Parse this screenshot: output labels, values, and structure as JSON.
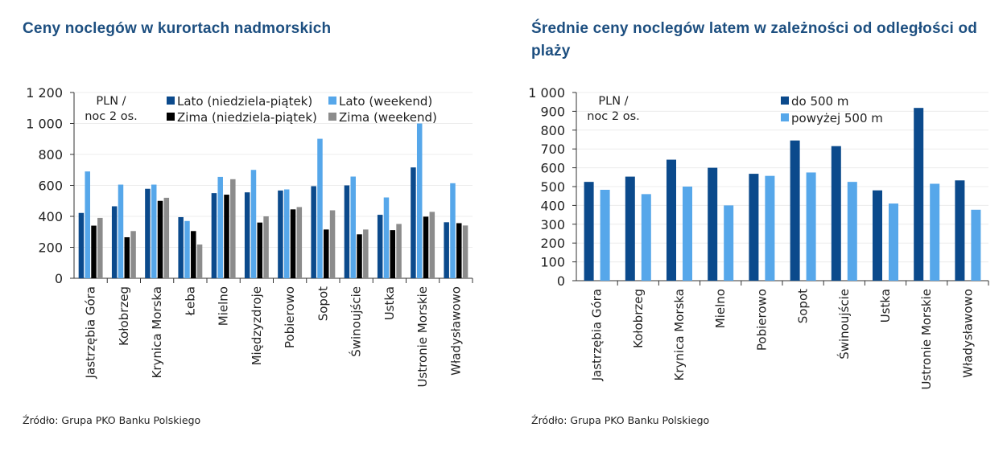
{
  "chart_data": [
    {
      "type": "bar",
      "title": "Ceny noclegów w kurortach nadmorskich",
      "unit_label": [
        "PLN /",
        "noc 2 os."
      ],
      "source": "Źródło: Grupa PKO Banku Polskiego",
      "ylim": [
        0,
        1200
      ],
      "yticks": [
        0,
        200,
        400,
        600,
        800,
        1000,
        1200
      ],
      "ytick_labels": [
        "0",
        "200",
        "400",
        "600",
        "800",
        "1 000",
        "1 200"
      ],
      "grid": true,
      "legend_placement": "top",
      "categories": [
        "Jastrzębia Góra",
        "Kołobrzeg",
        "Krynica Morska",
        "Łeba",
        "Mielno",
        "Międzyzdroje",
        "Pobierowo",
        "Sopot",
        "Świnoujście",
        "Ustka",
        "Ustronie Morskie",
        "Władysławowo"
      ],
      "series": [
        {
          "name": "Lato (niedziela-piątek)",
          "color": "#0b4a8c",
          "values": [
            422,
            465,
            578,
            395,
            550,
            555,
            567,
            595,
            600,
            410,
            716,
            362
          ]
        },
        {
          "name": "Lato (weekend)",
          "color": "#56a7ea",
          "values": [
            690,
            605,
            605,
            370,
            655,
            700,
            574,
            901,
            657,
            522,
            1000,
            614
          ]
        },
        {
          "name": "Zima (niedziela-piątek)",
          "color": "#000000",
          "values": [
            340,
            265,
            500,
            305,
            540,
            360,
            445,
            315,
            284,
            311,
            398,
            356
          ]
        },
        {
          "name": "Zima (weekend)",
          "color": "#8c8c8c",
          "values": [
            390,
            305,
            520,
            218,
            640,
            400,
            460,
            439,
            315,
            351,
            429,
            341
          ]
        }
      ]
    },
    {
      "type": "bar",
      "title": "Średnie ceny noclegów latem w zależności od odległości od plaży",
      "unit_label": [
        "PLN /",
        "noc 2 os."
      ],
      "source": "Źródło: Grupa PKO Banku Polskiego",
      "ylim": [
        0,
        1000
      ],
      "yticks": [
        0,
        100,
        200,
        300,
        400,
        500,
        600,
        700,
        800,
        900,
        1000
      ],
      "ytick_labels": [
        "0",
        "100",
        "200",
        "300",
        "400",
        "500",
        "600",
        "700",
        "800",
        "900",
        "1 000"
      ],
      "grid": true,
      "legend_placement": "top",
      "categories": [
        "Jastrzębia Góra",
        "Kołobrzeg",
        "Krynica Morska",
        "Mielno",
        "Pobierowo",
        "Sopot",
        "Świnoujście",
        "Ustka",
        "Ustronie Morskie",
        "Władysławowo"
      ],
      "series": [
        {
          "name": "do 500 m",
          "color": "#0b4a8c",
          "values": [
            525,
            553,
            643,
            600,
            568,
            745,
            715,
            480,
            918,
            533
          ]
        },
        {
          "name": "powyżej 500 m",
          "color": "#56a7ea",
          "values": [
            483,
            460,
            500,
            400,
            557,
            575,
            525,
            410,
            515,
            377
          ]
        }
      ]
    }
  ]
}
